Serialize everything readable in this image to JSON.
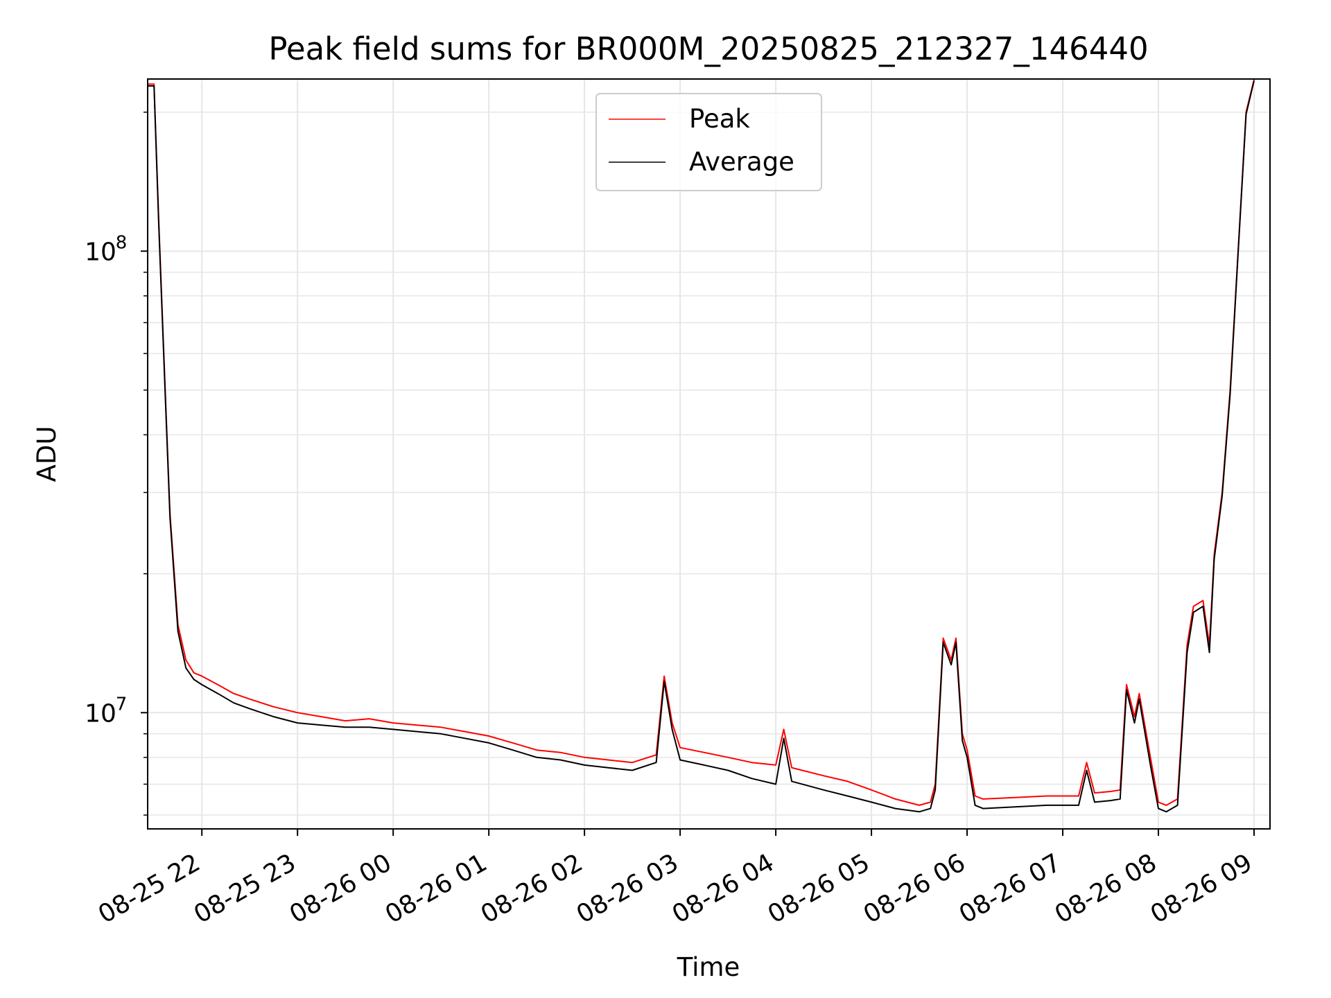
{
  "chart_data": {
    "type": "line",
    "title": "Peak field sums for BR000M_20250825_212327_146440",
    "xlabel": "Time",
    "ylabel": "ADU",
    "y_scale": "log",
    "xlim": [
      "2025-08-25 21:26",
      "2025-08-26 09:10"
    ],
    "ylim": [
      5600000,
      236000000
    ],
    "grid": true,
    "legend_position": "top-center",
    "x_ticks": [
      "08-25 22",
      "08-25 23",
      "08-26 00",
      "08-26 01",
      "08-26 02",
      "08-26 03",
      "08-26 04",
      "08-26 05",
      "08-26 06",
      "08-26 07",
      "08-26 08",
      "08-26 09"
    ],
    "x_tick_values": [
      "2025-08-25 22:00",
      "2025-08-25 23:00",
      "2025-08-26 00:00",
      "2025-08-26 01:00",
      "2025-08-26 02:00",
      "2025-08-26 03:00",
      "2025-08-26 04:00",
      "2025-08-26 05:00",
      "2025-08-26 06:00",
      "2025-08-26 07:00",
      "2025-08-26 08:00",
      "2025-08-26 09:00"
    ],
    "y_tick_labels": [
      {
        "base": "10",
        "exp": "7",
        "value": 10000000
      },
      {
        "base": "10",
        "exp": "8",
        "value": 100000000
      }
    ],
    "series": [
      {
        "name": "Peak",
        "color": "#ff0000",
        "x": [
          "2025-08-25 21:26",
          "2025-08-25 21:30",
          "2025-08-25 21:33",
          "2025-08-25 21:37",
          "2025-08-25 21:40",
          "2025-08-25 21:45",
          "2025-08-25 21:50",
          "2025-08-25 21:55",
          "2025-08-25 22:00",
          "2025-08-25 22:10",
          "2025-08-25 22:20",
          "2025-08-25 22:30",
          "2025-08-25 22:45",
          "2025-08-25 23:00",
          "2025-08-25 23:15",
          "2025-08-25 23:30",
          "2025-08-25 23:45",
          "2025-08-26 00:00",
          "2025-08-26 00:15",
          "2025-08-26 00:30",
          "2025-08-26 00:45",
          "2025-08-26 01:00",
          "2025-08-26 01:15",
          "2025-08-26 01:30",
          "2025-08-26 01:45",
          "2025-08-26 02:00",
          "2025-08-26 02:15",
          "2025-08-26 02:30",
          "2025-08-26 02:45",
          "2025-08-26 02:50",
          "2025-08-26 02:55",
          "2025-08-26 03:00",
          "2025-08-26 03:15",
          "2025-08-26 03:30",
          "2025-08-26 03:45",
          "2025-08-26 04:00",
          "2025-08-26 04:05",
          "2025-08-26 04:10",
          "2025-08-26 04:30",
          "2025-08-26 04:45",
          "2025-08-26 05:00",
          "2025-08-26 05:15",
          "2025-08-26 05:30",
          "2025-08-26 05:37",
          "2025-08-26 05:40",
          "2025-08-26 05:45",
          "2025-08-26 05:50",
          "2025-08-26 05:53",
          "2025-08-26 05:57",
          "2025-08-26 06:00",
          "2025-08-26 06:05",
          "2025-08-26 06:10",
          "2025-08-26 06:30",
          "2025-08-26 06:50",
          "2025-08-26 07:10",
          "2025-08-26 07:15",
          "2025-08-26 07:20",
          "2025-08-26 07:30",
          "2025-08-26 07:36",
          "2025-08-26 07:40",
          "2025-08-26 07:45",
          "2025-08-26 07:48",
          "2025-08-26 07:55",
          "2025-08-26 08:00",
          "2025-08-26 08:05",
          "2025-08-26 08:12",
          "2025-08-26 08:18",
          "2025-08-26 08:22",
          "2025-08-26 08:28",
          "2025-08-26 08:32",
          "2025-08-26 08:35",
          "2025-08-26 08:40",
          "2025-08-26 08:45",
          "2025-08-26 08:50",
          "2025-08-26 08:55",
          "2025-08-26 09:00"
        ],
        "y": [
          230000000,
          230000000,
          115000000,
          50000000,
          27000000,
          15500000,
          13000000,
          12200000,
          12000000,
          11500000,
          11000000,
          10700000,
          10300000,
          10000000,
          9800000,
          9600000,
          9700000,
          9500000,
          9400000,
          9300000,
          9100000,
          8900000,
          8600000,
          8300000,
          8200000,
          8000000,
          7900000,
          7800000,
          8100000,
          12000000,
          9500000,
          8400000,
          8200000,
          8000000,
          7800000,
          7700000,
          9200000,
          7600000,
          7300000,
          7100000,
          6800000,
          6500000,
          6300000,
          6400000,
          7000000,
          14500000,
          13000000,
          14500000,
          9000000,
          8300000,
          6600000,
          6500000,
          6550000,
          6600000,
          6600000,
          7800000,
          6700000,
          6750000,
          6800000,
          11500000,
          9800000,
          11000000,
          8000000,
          6400000,
          6300000,
          6500000,
          14000000,
          17000000,
          17500000,
          14000000,
          22000000,
          30000000,
          50000000,
          100000000,
          200000000,
          236000000
        ]
      },
      {
        "name": "Average",
        "color": "#000000",
        "x": [
          "2025-08-25 21:26",
          "2025-08-25 21:30",
          "2025-08-25 21:33",
          "2025-08-25 21:37",
          "2025-08-25 21:40",
          "2025-08-25 21:45",
          "2025-08-25 21:50",
          "2025-08-25 21:55",
          "2025-08-25 22:00",
          "2025-08-25 22:10",
          "2025-08-25 22:20",
          "2025-08-25 22:30",
          "2025-08-25 22:45",
          "2025-08-25 23:00",
          "2025-08-25 23:15",
          "2025-08-25 23:30",
          "2025-08-25 23:45",
          "2025-08-26 00:00",
          "2025-08-26 00:15",
          "2025-08-26 00:30",
          "2025-08-26 00:45",
          "2025-08-26 01:00",
          "2025-08-26 01:15",
          "2025-08-26 01:30",
          "2025-08-26 01:45",
          "2025-08-26 02:00",
          "2025-08-26 02:15",
          "2025-08-26 02:30",
          "2025-08-26 02:45",
          "2025-08-26 02:50",
          "2025-08-26 02:55",
          "2025-08-26 03:00",
          "2025-08-26 03:15",
          "2025-08-26 03:30",
          "2025-08-26 03:45",
          "2025-08-26 04:00",
          "2025-08-26 04:05",
          "2025-08-26 04:10",
          "2025-08-26 04:30",
          "2025-08-26 04:45",
          "2025-08-26 05:00",
          "2025-08-26 05:15",
          "2025-08-26 05:30",
          "2025-08-26 05:37",
          "2025-08-26 05:40",
          "2025-08-26 05:45",
          "2025-08-26 05:50",
          "2025-08-26 05:53",
          "2025-08-26 05:57",
          "2025-08-26 06:00",
          "2025-08-26 06:05",
          "2025-08-26 06:10",
          "2025-08-26 06:30",
          "2025-08-26 06:50",
          "2025-08-26 07:10",
          "2025-08-26 07:15",
          "2025-08-26 07:20",
          "2025-08-26 07:30",
          "2025-08-26 07:36",
          "2025-08-26 07:40",
          "2025-08-26 07:45",
          "2025-08-26 07:48",
          "2025-08-26 07:55",
          "2025-08-26 08:00",
          "2025-08-26 08:05",
          "2025-08-26 08:12",
          "2025-08-26 08:18",
          "2025-08-26 08:22",
          "2025-08-26 08:28",
          "2025-08-26 08:32",
          "2025-08-26 08:35",
          "2025-08-26 08:40",
          "2025-08-26 08:45",
          "2025-08-26 08:50",
          "2025-08-26 08:55",
          "2025-08-26 09:00"
        ],
        "y": [
          228000000,
          228000000,
          113000000,
          49000000,
          26500000,
          15000000,
          12500000,
          11800000,
          11500000,
          11000000,
          10500000,
          10200000,
          9800000,
          9500000,
          9400000,
          9300000,
          9300000,
          9200000,
          9100000,
          9000000,
          8800000,
          8600000,
          8300000,
          8000000,
          7900000,
          7700000,
          7600000,
          7500000,
          7800000,
          11700000,
          9200000,
          7900000,
          7700000,
          7500000,
          7200000,
          7000000,
          8800000,
          7100000,
          6800000,
          6600000,
          6400000,
          6200000,
          6100000,
          6200000,
          6800000,
          14200000,
          12700000,
          14200000,
          8700000,
          8000000,
          6300000,
          6200000,
          6250000,
          6300000,
          6300000,
          7500000,
          6400000,
          6450000,
          6500000,
          11200000,
          9500000,
          10700000,
          7700000,
          6200000,
          6100000,
          6300000,
          13500000,
          16500000,
          17000000,
          13500000,
          21500000,
          29500000,
          49000000,
          99000000,
          198000000,
          234000000
        ]
      }
    ]
  }
}
